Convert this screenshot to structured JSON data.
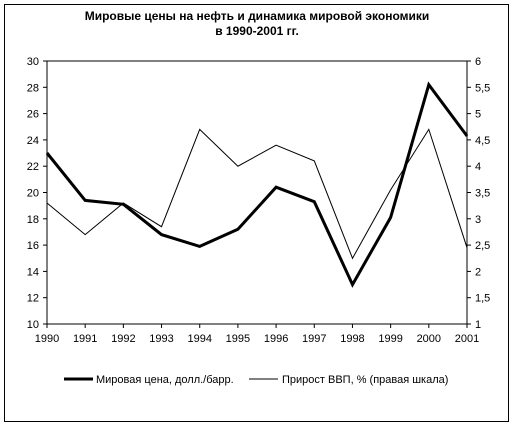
{
  "chart_data": {
    "type": "line",
    "title_line1": "Мировые цены на нефть и динамика мировой экономики",
    "title_line2": "в 1990-2001 гг.",
    "categories": [
      "1990",
      "1991",
      "1992",
      "1993",
      "1994",
      "1995",
      "1996",
      "1997",
      "1998",
      "1999",
      "2000",
      "2001"
    ],
    "y_left": {
      "ylim": [
        10,
        30
      ],
      "ticks": [
        "10",
        "12",
        "14",
        "16",
        "18",
        "20",
        "22",
        "24",
        "26",
        "28",
        "30"
      ]
    },
    "y_right": {
      "ylim": [
        1,
        6
      ],
      "ticks": [
        "1",
        "1,5",
        "2",
        "2,5",
        "3",
        "3,5",
        "4",
        "4,5",
        "5",
        "5,5",
        "6"
      ]
    },
    "series": [
      {
        "name": "Мировая цена, долл./барр.",
        "axis": "left",
        "style": "thick",
        "values": [
          23.0,
          19.4,
          19.1,
          16.8,
          15.9,
          17.2,
          20.4,
          19.3,
          13.0,
          18.1,
          28.2,
          24.3
        ]
      },
      {
        "name": "Прирост ВВП, % (правая шкала)",
        "axis": "right",
        "style": "thin",
        "values": [
          3.3,
          2.7,
          3.3,
          2.85,
          4.7,
          4.0,
          4.4,
          4.1,
          2.25,
          3.55,
          4.7,
          2.45
        ]
      }
    ],
    "grid": false,
    "legend_position": "bottom"
  }
}
